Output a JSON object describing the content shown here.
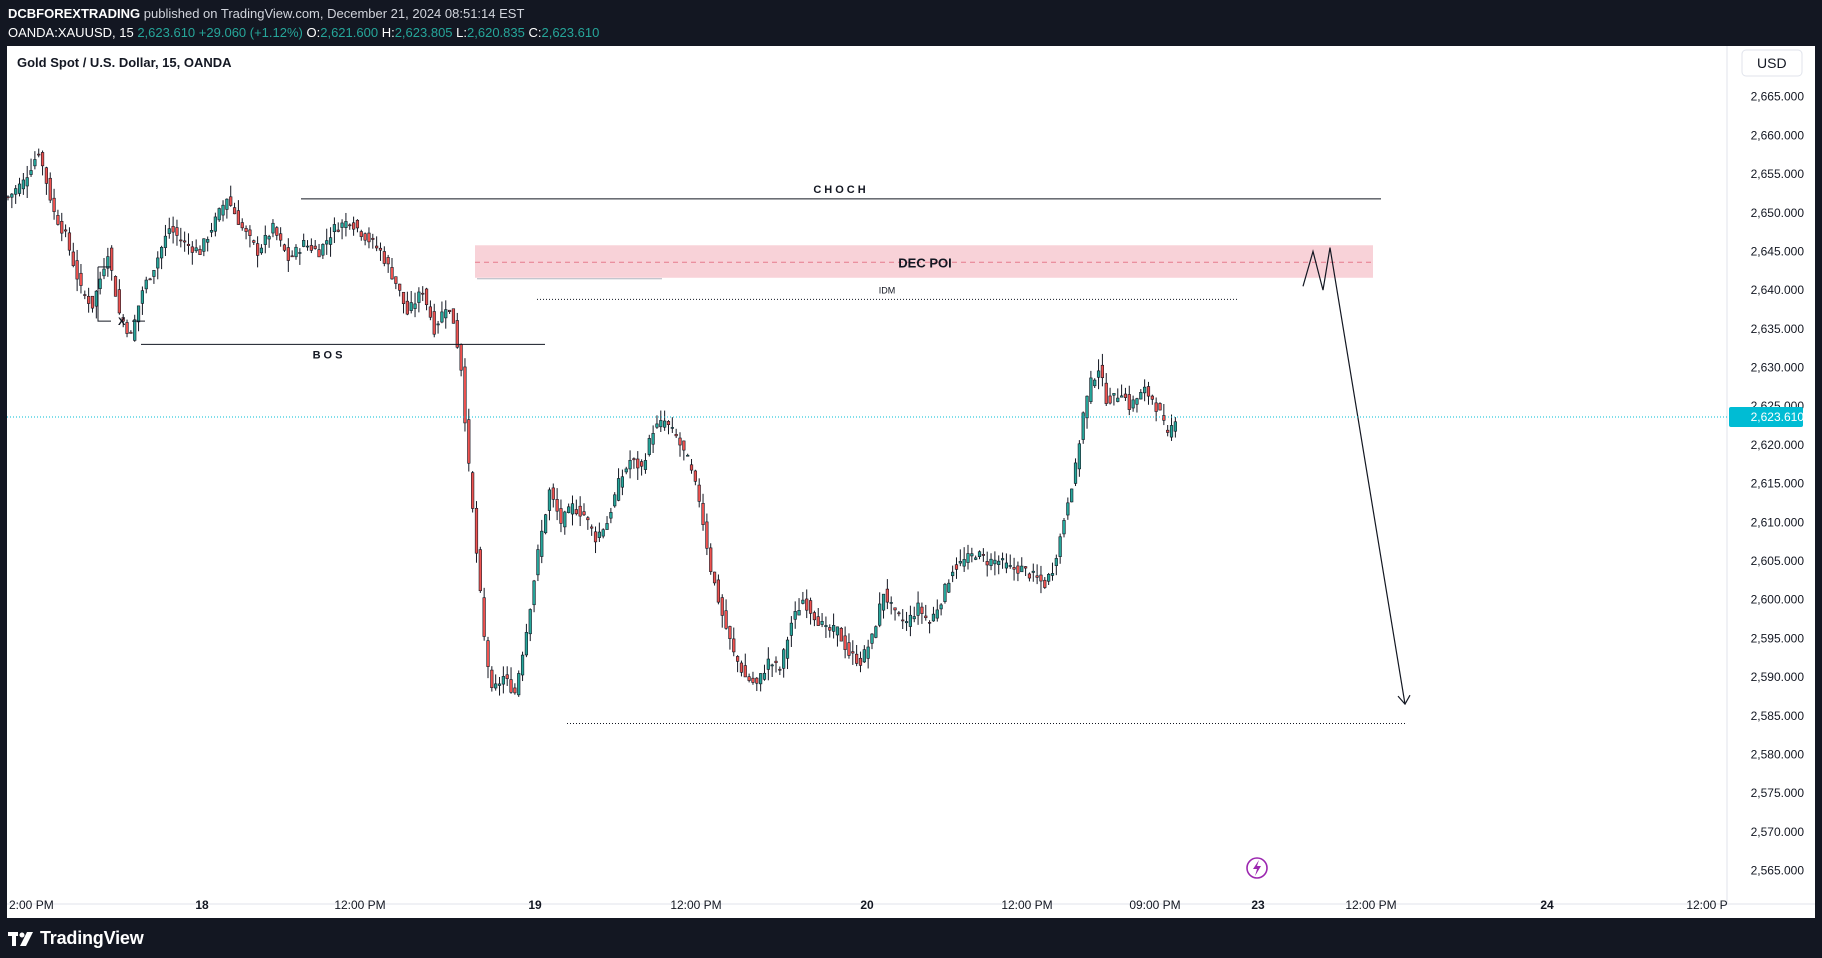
{
  "header": {
    "author": "DCBFOREXTRADING",
    "published_text": " published on TradingView.com, December 21, 2024 08:51:14 EST",
    "symbol": "OANDA:XAUUSD, 15",
    "last": "2,623.610",
    "change": "+29.060 (+1.12%)",
    "o_label": "O:",
    "o_value": "2,621.600",
    "h_label": "H:",
    "h_value": "2,623.805",
    "l_label": "L:",
    "l_value": "2,620.835",
    "c_label": "C:",
    "c_value": "2,623.610"
  },
  "footer": {
    "brand": "TradingView",
    "logo_icon": "tradingview-logo-icon"
  },
  "chart_data": {
    "type": "candlestick",
    "title": "Gold Spot / U.S. Dollar, 15, OANDA",
    "currency_button": "USD",
    "ylim": [
      2563,
      2670
    ],
    "y_ticks": [
      2665,
      2660,
      2655,
      2650,
      2645,
      2640,
      2635,
      2630,
      2625,
      2620,
      2615,
      2610,
      2605,
      2600,
      2595,
      2590,
      2585,
      2580,
      2575,
      2570,
      2565
    ],
    "x_ticks": [
      "2:00 PM",
      "18",
      "12:00 PM",
      "19",
      "12:00 PM",
      "20",
      "12:00 PM",
      "09:00 PM",
      "23",
      "12:00 PM",
      "24",
      "12:00 P"
    ],
    "last_price": 2623.61,
    "last_price_label": "2,623.610",
    "colors": {
      "up": "#26a69a",
      "down": "#ef5350",
      "outline": "#131722",
      "last_price": "#00bcd4",
      "poi_zone": "#f8d2d8"
    },
    "approx_path": [
      [
        0,
        2652
      ],
      [
        4,
        2654
      ],
      [
        8,
        2658
      ],
      [
        12,
        2650
      ],
      [
        15,
        2647
      ],
      [
        19,
        2640
      ],
      [
        22,
        2638
      ],
      [
        26,
        2645
      ],
      [
        29,
        2637
      ],
      [
        32,
        2634
      ],
      [
        35,
        2640
      ],
      [
        38,
        2643
      ],
      [
        42,
        2648
      ],
      [
        46,
        2646
      ],
      [
        50,
        2645
      ],
      [
        53,
        2648
      ],
      [
        57,
        2652
      ],
      [
        61,
        2648
      ],
      [
        65,
        2645
      ],
      [
        69,
        2648
      ],
      [
        73,
        2644
      ],
      [
        77,
        2646
      ],
      [
        81,
        2645
      ],
      [
        85,
        2648
      ],
      [
        89,
        2649
      ],
      [
        93,
        2647
      ],
      [
        97,
        2645
      ],
      [
        101,
        2641
      ],
      [
        104,
        2637
      ],
      [
        108,
        2640
      ],
      [
        111,
        2635
      ],
      [
        114,
        2638
      ],
      [
        116,
        2636
      ],
      [
        118,
        2630
      ],
      [
        120,
        2617
      ],
      [
        122,
        2606
      ],
      [
        124,
        2595
      ],
      [
        126,
        2588
      ],
      [
        129,
        2590
      ],
      [
        132,
        2588
      ],
      [
        135,
        2596
      ],
      [
        138,
        2606
      ],
      [
        141,
        2614
      ],
      [
        144,
        2610
      ],
      [
        147,
        2612
      ],
      [
        150,
        2611
      ],
      [
        153,
        2608
      ],
      [
        156,
        2610
      ],
      [
        159,
        2615
      ],
      [
        162,
        2618
      ],
      [
        165,
        2617
      ],
      [
        168,
        2622
      ],
      [
        171,
        2623
      ],
      [
        174,
        2621
      ],
      [
        177,
        2618
      ],
      [
        180,
        2613
      ],
      [
        183,
        2604
      ],
      [
        186,
        2598
      ],
      [
        189,
        2593
      ],
      [
        192,
        2590
      ],
      [
        195,
        2589
      ],
      [
        198,
        2592
      ],
      [
        201,
        2591
      ],
      [
        204,
        2597
      ],
      [
        207,
        2600
      ],
      [
        210,
        2598
      ],
      [
        213,
        2596
      ],
      [
        216,
        2596
      ],
      [
        219,
        2593
      ],
      [
        222,
        2592
      ],
      [
        225,
        2595
      ],
      [
        228,
        2601
      ],
      [
        231,
        2598
      ],
      [
        234,
        2597
      ],
      [
        237,
        2599
      ],
      [
        240,
        2597
      ],
      [
        243,
        2600
      ],
      [
        246,
        2604
      ],
      [
        249,
        2605
      ],
      [
        252,
        2606
      ],
      [
        255,
        2605
      ],
      [
        258,
        2605
      ],
      [
        261,
        2604
      ],
      [
        264,
        2604
      ],
      [
        267,
        2603
      ],
      [
        270,
        2602
      ],
      [
        272,
        2604
      ],
      [
        274,
        2608
      ],
      [
        276,
        2613
      ],
      [
        278,
        2617
      ],
      [
        280,
        2624
      ],
      [
        282,
        2628
      ],
      [
        284,
        2630
      ],
      [
        286,
        2626
      ],
      [
        288,
        2626
      ],
      [
        290,
        2627
      ],
      [
        292,
        2625
      ],
      [
        294,
        2626
      ],
      [
        296,
        2627
      ],
      [
        298,
        2626
      ],
      [
        300,
        2624
      ],
      [
        302,
        2621
      ],
      [
        304,
        2623.6
      ]
    ],
    "annotations": {
      "choch": "CHOCH",
      "bos": "BOS",
      "dec_poi": "DEC POI",
      "idm": "IDM",
      "x_mark": "X",
      "dec_poi_zone": [
        2641.6,
        2645.8
      ],
      "dec_poi_mid": 2643.6,
      "choch_level": 2651.8,
      "bos_level": 2633.0,
      "idm_level": 2638.8,
      "target_level": 2584.0,
      "projection": [
        [
          2640.5,
          "start"
        ],
        [
          2645.0,
          "peak1"
        ],
        [
          2640.0,
          "dip"
        ],
        [
          2645.5,
          "peak2"
        ],
        [
          2586.5,
          "target"
        ]
      ]
    },
    "event_icon": "lightning-icon",
    "grid": false,
    "legend": "none"
  }
}
